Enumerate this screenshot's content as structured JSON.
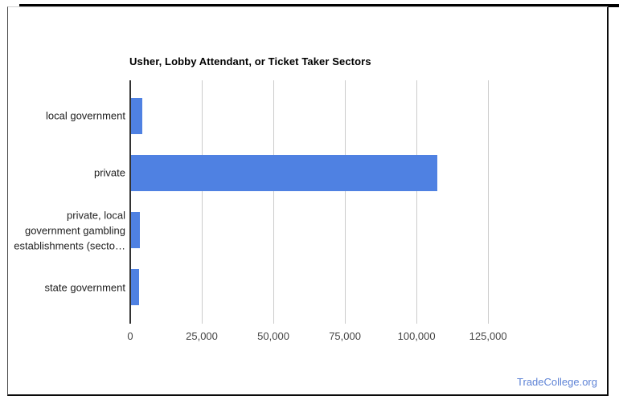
{
  "chart_data": {
    "type": "bar",
    "orientation": "horizontal",
    "title": "Usher, Lobby Attendant, or Ticket Taker Sectors",
    "categories": [
      "local government",
      "private",
      "private, local government gambling establishments (secto…",
      "state government"
    ],
    "category_display_lines": [
      [
        "local government"
      ],
      [
        "private"
      ],
      [
        "private, local",
        "government gambling",
        "establishments (secto…"
      ],
      [
        "state government"
      ]
    ],
    "values": [
      4000,
      107000,
      3100,
      2800
    ],
    "xlabel": "",
    "ylabel": "",
    "xlim": [
      0,
      139000
    ],
    "xticks": [
      {
        "value": 0,
        "label": "0"
      },
      {
        "value": 25000,
        "label": "25,000"
      },
      {
        "value": 50000,
        "label": "50,000"
      },
      {
        "value": 75000,
        "label": "75,000"
      },
      {
        "value": 100000,
        "label": "100,000"
      },
      {
        "value": 125000,
        "label": "125,000"
      }
    ],
    "grid": true,
    "legend": "none",
    "bar_color": "#4F81E2",
    "axis_color": "#333333",
    "gridline_color": "#cccccc"
  },
  "footer": {
    "brand": "TradeCollege.org",
    "color": "#5E83D6"
  }
}
